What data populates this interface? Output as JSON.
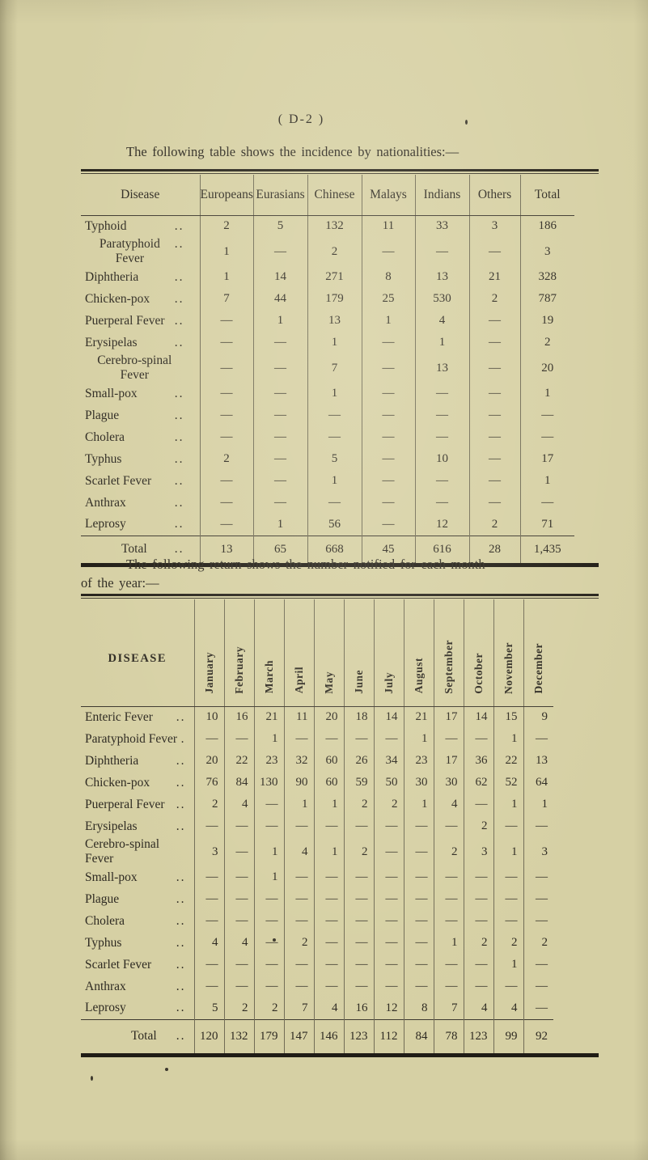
{
  "page": {
    "page_number": "( D-2 )",
    "caption_nationalities": "The following table shows the incidence by nationalities:—",
    "caption_monthly_line1": "The following return shows the number notified for each month",
    "caption_monthly_line2": "of the year:—"
  },
  "colors": {
    "paper": "#d6d0a4",
    "ink": "#2e2a22",
    "rule": "#201c15"
  },
  "nationality_table": {
    "columns": [
      "Disease",
      "Europeans",
      "Eurasians",
      "Chinese",
      "Malays",
      "Indians",
      "Others",
      "Total"
    ],
    "rows": [
      {
        "name": "Typhoid",
        "dots": "..",
        "values": [
          "2",
          "5",
          "132",
          "11",
          "33",
          "3",
          "186"
        ]
      },
      {
        "name": "Paratyphoid Fever",
        "dots": "..",
        "values": [
          "1",
          "—",
          "2",
          "—",
          "—",
          "—",
          "3"
        ]
      },
      {
        "name": "Diphtheria",
        "dots": "..",
        "values": [
          "1",
          "14",
          "271",
          "8",
          "13",
          "21",
          "328"
        ]
      },
      {
        "name": "Chicken-pox",
        "dots": "..",
        "values": [
          "7",
          "44",
          "179",
          "25",
          "530",
          "2",
          "787"
        ]
      },
      {
        "name": "Puerperal Fever",
        "dots": "..",
        "values": [
          "—",
          "1",
          "13",
          "1",
          "4",
          "—",
          "19"
        ]
      },
      {
        "name": "Erysipelas",
        "dots": "..",
        "values": [
          "—",
          "—",
          "1",
          "—",
          "1",
          "—",
          "2"
        ]
      },
      {
        "name": "Cerebro-spinal Fever",
        "dots": "",
        "values": [
          "—",
          "—",
          "7",
          "—",
          "13",
          "—",
          "20"
        ]
      },
      {
        "name": "Small-pox",
        "dots": "..",
        "values": [
          "—",
          "—",
          "1",
          "—",
          "—",
          "—",
          "1"
        ]
      },
      {
        "name": "Plague",
        "dots": "..",
        "values": [
          "—",
          "—",
          "—",
          "—",
          "—",
          "—",
          "—"
        ]
      },
      {
        "name": "Cholera",
        "dots": "..",
        "values": [
          "—",
          "—",
          "—",
          "—",
          "—",
          "—",
          "—"
        ]
      },
      {
        "name": "Typhus",
        "dots": "..",
        "values": [
          "2",
          "—",
          "5",
          "—",
          "10",
          "—",
          "17"
        ]
      },
      {
        "name": "Scarlet Fever",
        "dots": "..",
        "values": [
          "—",
          "—",
          "1",
          "—",
          "—",
          "—",
          "1"
        ]
      },
      {
        "name": "Anthrax",
        "dots": "..",
        "values": [
          "—",
          "—",
          "—",
          "—",
          "—",
          "—",
          "—"
        ]
      },
      {
        "name": "Leprosy",
        "dots": "..",
        "values": [
          "—",
          "1",
          "56",
          "—",
          "12",
          "2",
          "71"
        ]
      }
    ],
    "total_row": {
      "name": "Total",
      "dots": "..",
      "values": [
        "13",
        "65",
        "668",
        "45",
        "616",
        "28",
        "1,435"
      ]
    }
  },
  "monthly_table": {
    "label_header": "DISEASE",
    "months": [
      "January",
      "February",
      "March",
      "April",
      "May",
      "June",
      "July",
      "August",
      "September",
      "October",
      "November",
      "December"
    ],
    "rows": [
      {
        "name": "Enteric Fever",
        "dots": "..",
        "values": [
          "10",
          "16",
          "21",
          "11",
          "20",
          "18",
          "14",
          "21",
          "17",
          "14",
          "15",
          "9"
        ]
      },
      {
        "name": "Paratyphoid Fever",
        "dots": ".",
        "values": [
          "—",
          "—",
          "1",
          "—",
          "—",
          "—",
          "—",
          "1",
          "—",
          "—",
          "1",
          "—"
        ]
      },
      {
        "name": "Diphtheria",
        "dots": "..",
        "values": [
          "20",
          "22",
          "23",
          "32",
          "60",
          "26",
          "34",
          "23",
          "17",
          "36",
          "22",
          "13"
        ]
      },
      {
        "name": "Chicken-pox",
        "dots": "..",
        "values": [
          "76",
          "84",
          "130",
          "90",
          "60",
          "59",
          "50",
          "30",
          "30",
          "62",
          "52",
          "64"
        ]
      },
      {
        "name": "Puerperal Fever",
        "dots": "..",
        "values": [
          "2",
          "4",
          "—",
          "1",
          "1",
          "2",
          "2",
          "1",
          "4",
          "—",
          "1",
          "1"
        ]
      },
      {
        "name": "Erysipelas",
        "dots": "..",
        "values": [
          "—",
          "—",
          "—",
          "—",
          "—",
          "—",
          "—",
          "—",
          "—",
          "2",
          "—",
          "—"
        ]
      },
      {
        "name": "Cerebro-spinal Fever",
        "dots": "",
        "values": [
          "3",
          "—",
          "1",
          "4",
          "1",
          "2",
          "—",
          "—",
          "2",
          "3",
          "1",
          "3"
        ]
      },
      {
        "name": "Small-pox",
        "dots": "..",
        "values": [
          "—",
          "—",
          "1",
          "—",
          "—",
          "—",
          "—",
          "—",
          "—",
          "—",
          "—",
          "—"
        ]
      },
      {
        "name": "Plague",
        "dots": "..",
        "values": [
          "—",
          "—",
          "—",
          "—",
          "—",
          "—",
          "—",
          "—",
          "—",
          "—",
          "—",
          "—"
        ]
      },
      {
        "name": "Cholera",
        "dots": "..",
        "values": [
          "—",
          "—",
          "—",
          "—",
          "—",
          "—",
          "—",
          "—",
          "—",
          "—",
          "—",
          "—"
        ]
      },
      {
        "name": "Typhus",
        "dots": "..",
        "values": [
          "4",
          "4",
          "—",
          "2",
          "—",
          "—",
          "—",
          "—",
          "1",
          "2",
          "2",
          "2"
        ]
      },
      {
        "name": "Scarlet Fever",
        "dots": "..",
        "values": [
          "—",
          "—",
          "—",
          "—",
          "—",
          "—",
          "—",
          "—",
          "—",
          "—",
          "1",
          "—"
        ]
      },
      {
        "name": "Anthrax",
        "dots": "..",
        "values": [
          "—",
          "—",
          "—",
          "—",
          "—",
          "—",
          "—",
          "—",
          "—",
          "—",
          "—",
          "—"
        ]
      },
      {
        "name": "Leprosy",
        "dots": "..",
        "values": [
          "5",
          "2",
          "2",
          "7",
          "4",
          "16",
          "12",
          "8",
          "7",
          "4",
          "4",
          "—"
        ]
      }
    ],
    "total_row": {
      "name": "Total",
      "dots": "..",
      "values": [
        "120",
        "132",
        "179",
        "147",
        "146",
        "123",
        "112",
        "84",
        "78",
        "123",
        "99",
        "92"
      ]
    }
  }
}
